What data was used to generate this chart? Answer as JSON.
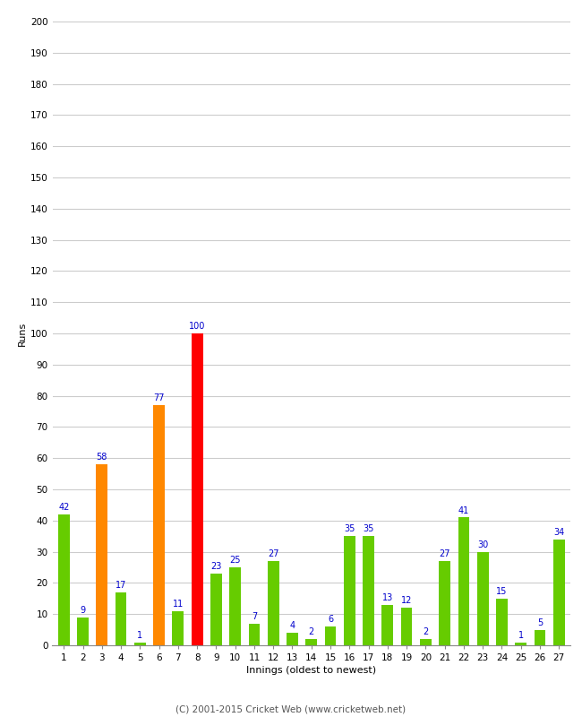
{
  "xlabel": "Innings (oldest to newest)",
  "ylabel": "Runs",
  "values": [
    42,
    9,
    58,
    17,
    1,
    77,
    11,
    100,
    23,
    25,
    7,
    27,
    4,
    2,
    6,
    35,
    35,
    13,
    12,
    2,
    27,
    41,
    30,
    15,
    1,
    5,
    34
  ],
  "labels": [
    "1",
    "2",
    "3",
    "4",
    "5",
    "6",
    "7",
    "8",
    "9",
    "10",
    "11",
    "12",
    "13",
    "14",
    "15",
    "16",
    "17",
    "18",
    "19",
    "20",
    "21",
    "22",
    "23",
    "24",
    "25",
    "26",
    "27"
  ],
  "bar_colors": [
    "#66cc00",
    "#66cc00",
    "#ff8800",
    "#66cc00",
    "#66cc00",
    "#ff8800",
    "#66cc00",
    "#ff0000",
    "#66cc00",
    "#66cc00",
    "#66cc00",
    "#66cc00",
    "#66cc00",
    "#66cc00",
    "#66cc00",
    "#66cc00",
    "#66cc00",
    "#66cc00",
    "#66cc00",
    "#66cc00",
    "#66cc00",
    "#66cc00",
    "#66cc00",
    "#66cc00",
    "#66cc00",
    "#66cc00",
    "#66cc00"
  ],
  "ylim": [
    0,
    200
  ],
  "yticks": [
    0,
    10,
    20,
    30,
    40,
    50,
    60,
    70,
    80,
    90,
    100,
    110,
    120,
    130,
    140,
    150,
    160,
    170,
    180,
    190,
    200
  ],
  "label_color": "#0000cc",
  "background_color": "#ffffff",
  "grid_color": "#cccccc",
  "footer": "(C) 2001-2015 Cricket Web (www.cricketweb.net)",
  "bar_width": 0.6,
  "label_fontsize": 7,
  "tick_fontsize": 7.5,
  "ylabel_fontsize": 8,
  "xlabel_fontsize": 8
}
